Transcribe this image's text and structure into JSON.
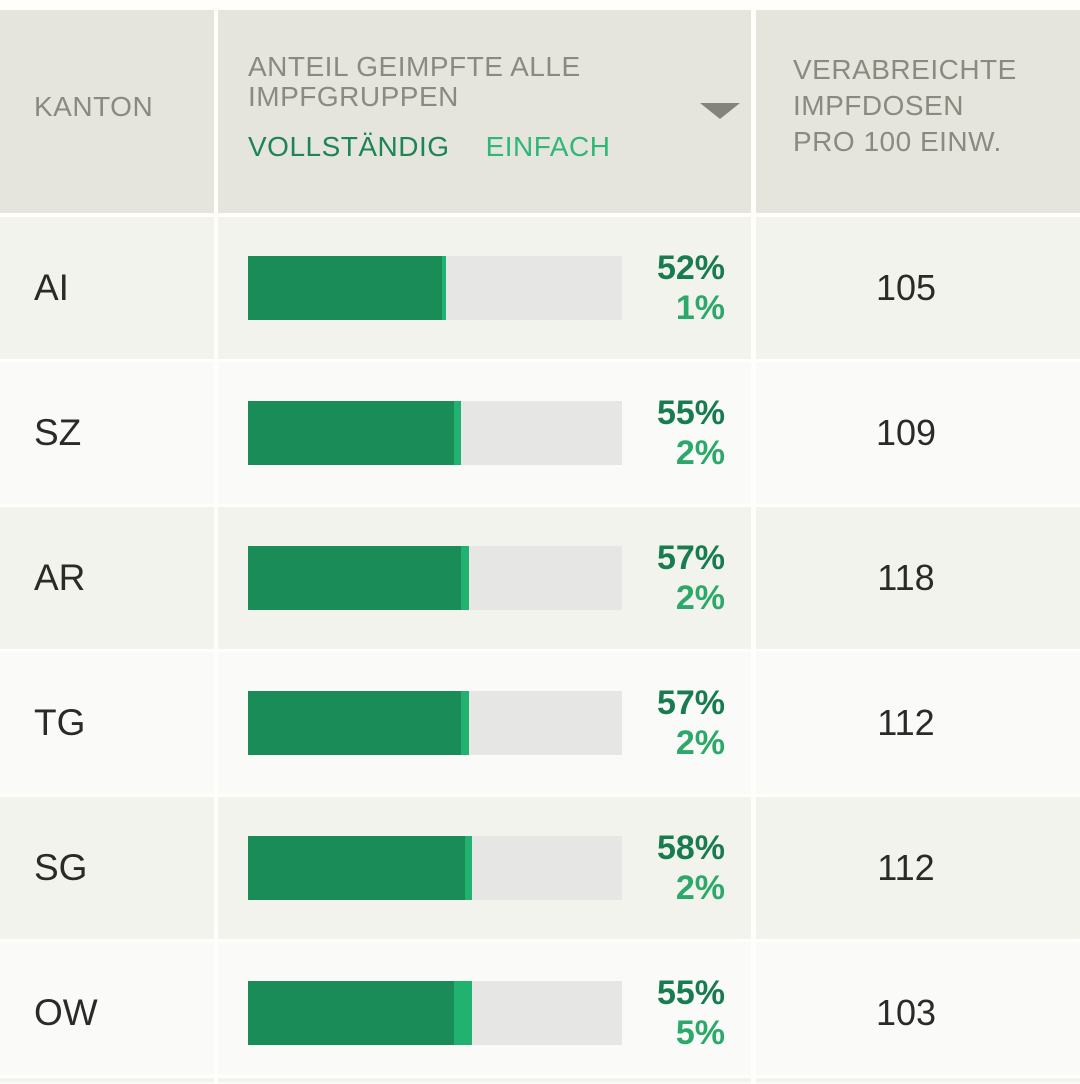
{
  "header": {
    "col_kanton": "KANTON",
    "col_anteil_line1": "ANTEIL GEIMPFTE ALLE",
    "col_anteil_line2": "IMPFGRUPPEN",
    "legend_vollstaendig": "VOLLSTÄNDIG",
    "legend_einfach": "EINFACH",
    "sort_indicator": "descending-triangle",
    "col_dosen_line1": "VERABREICHTE",
    "col_dosen_line2": "IMPFDOSEN",
    "col_dosen_line3": "PRO 100 EINW."
  },
  "colors": {
    "header_bg": "#e6e5dd",
    "header_text": "#8b8a80",
    "row_odd_bg": "#f3f3ed",
    "row_even_bg": "#fafaf8",
    "bar_vollstaendig": "#1a8c58",
    "bar_einfach": "#21b26f",
    "bar_track": "#e6e6e4",
    "pct_vollstaendig_text": "#187c50",
    "pct_einfach_text": "#2ca96a",
    "legend_vollstaendig_text": "#1c8556",
    "legend_einfach_text": "#2eb878",
    "sort_arrow": "#85847b",
    "body_text": "#2b2a26"
  },
  "rows": [
    {
      "kanton": "AI",
      "vollstaendig_pct": 52,
      "einfach_pct": 1,
      "vollstaendig_label": "52%",
      "einfach_label": "1%",
      "dosen": "105"
    },
    {
      "kanton": "SZ",
      "vollstaendig_pct": 55,
      "einfach_pct": 2,
      "vollstaendig_label": "55%",
      "einfach_label": "2%",
      "dosen": "109"
    },
    {
      "kanton": "AR",
      "vollstaendig_pct": 57,
      "einfach_pct": 2,
      "vollstaendig_label": "57%",
      "einfach_label": "2%",
      "dosen": "118"
    },
    {
      "kanton": "TG",
      "vollstaendig_pct": 57,
      "einfach_pct": 2,
      "vollstaendig_label": "57%",
      "einfach_label": "2%",
      "dosen": "112"
    },
    {
      "kanton": "SG",
      "vollstaendig_pct": 58,
      "einfach_pct": 2,
      "vollstaendig_label": "58%",
      "einfach_label": "2%",
      "dosen": "112"
    },
    {
      "kanton": "OW",
      "vollstaendig_pct": 55,
      "einfach_pct": 5,
      "vollstaendig_label": "55%",
      "einfach_label": "5%",
      "dosen": "103"
    }
  ],
  "chart_data": {
    "type": "bar",
    "orientation": "horizontal",
    "title": "ANTEIL GEIMPFTE ALLE IMPFGRUPPEN",
    "categories": [
      "AI",
      "SZ",
      "AR",
      "TG",
      "SG",
      "OW"
    ],
    "series": [
      {
        "name": "VOLLSTÄNDIG",
        "values": [
          52,
          55,
          57,
          57,
          58,
          55
        ]
      },
      {
        "name": "EINFACH",
        "values": [
          1,
          2,
          2,
          2,
          2,
          5
        ]
      }
    ],
    "extra_column": {
      "label": "VERABREICHTE IMPFDOSEN PRO 100 EINW.",
      "values": [
        105,
        109,
        118,
        112,
        112,
        103
      ]
    },
    "xlim": [
      0,
      100
    ],
    "legend_position": "header",
    "sort": "descending"
  }
}
